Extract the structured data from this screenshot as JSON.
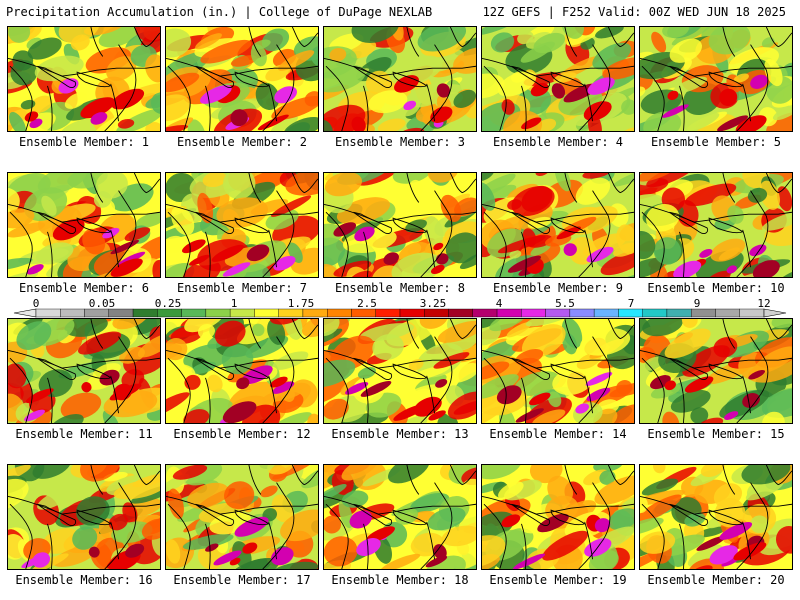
{
  "header": {
    "title_left": "Precipitation Accumulation (in.) | College of DuPage NEXLAB",
    "title_right": "12Z GEFS | F252 Valid: 00Z WED JUN 18 2025"
  },
  "colorbar": {
    "tick_labels": [
      "0",
      "0.05",
      "0.25",
      "1",
      "1.75",
      "2.5",
      "3.25",
      "4",
      "5.5",
      "7",
      "9",
      "12"
    ],
    "colors": [
      "#d8d8d8",
      "#bdbdbd",
      "#a0a0a0",
      "#838383",
      "#2f7d2f",
      "#3b9a3b",
      "#58b858",
      "#8cd14a",
      "#c6e84a",
      "#ffff33",
      "#ffd21e",
      "#ffaa11",
      "#ff8400",
      "#ff5c00",
      "#ff1e00",
      "#e60000",
      "#c40000",
      "#a20024",
      "#b4006e",
      "#d300b0",
      "#e628e6",
      "#b45af0",
      "#8a8cff",
      "#6ab4ff",
      "#28e6ff",
      "#22c8c8",
      "#40b0b0",
      "#909090",
      "#a8a8a8",
      "#c8c8c8"
    ]
  },
  "panels": [
    {
      "label": "Ensemble Member: 1"
    },
    {
      "label": "Ensemble Member: 2"
    },
    {
      "label": "Ensemble Member: 3"
    },
    {
      "label": "Ensemble Member: 4"
    },
    {
      "label": "Ensemble Member: 5"
    },
    {
      "label": "Ensemble Member: 6"
    },
    {
      "label": "Ensemble Member: 7"
    },
    {
      "label": "Ensemble Member: 8"
    },
    {
      "label": "Ensemble Member: 9"
    },
    {
      "label": "Ensemble Member: 10"
    },
    {
      "label": "Ensemble Member: 11"
    },
    {
      "label": "Ensemble Member: 12"
    },
    {
      "label": "Ensemble Member: 13"
    },
    {
      "label": "Ensemble Member: 14"
    },
    {
      "label": "Ensemble Member: 15"
    },
    {
      "label": "Ensemble Member: 16"
    },
    {
      "label": "Ensemble Member: 17"
    },
    {
      "label": "Ensemble Member: 18"
    },
    {
      "label": "Ensemble Member: 19"
    },
    {
      "label": "Ensemble Member: 20"
    }
  ]
}
